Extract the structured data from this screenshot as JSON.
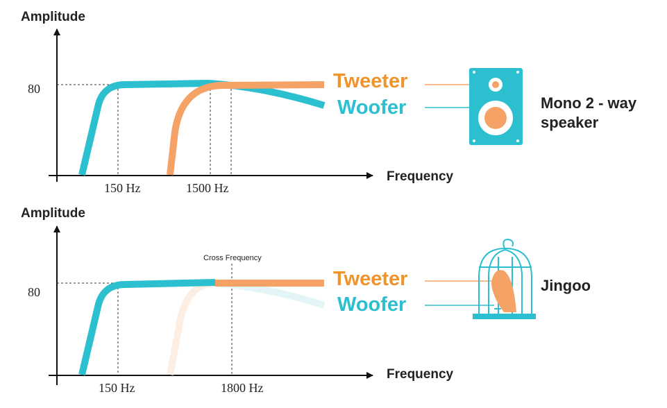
{
  "panels": [
    {
      "y_axis_label": "Amplitude",
      "y_tick": "80",
      "x_ticks": [
        "150 Hz",
        "1500 Hz"
      ],
      "x_axis_label": "Frequency",
      "legend": {
        "tweeter": "Tweeter",
        "woofer": "Woofer"
      },
      "device_label": [
        "Mono 2 - way",
        "speaker"
      ]
    },
    {
      "y_axis_label": "Amplitude",
      "y_tick": "80",
      "x_ticks": [
        "150 Hz",
        "1800 Hz"
      ],
      "x_axis_label": "Frequency",
      "annotation": "Cross Frequency",
      "legend": {
        "tweeter": "Tweeter",
        "woofer": "Woofer"
      },
      "device_label": [
        "Jingoo"
      ]
    }
  ]
}
